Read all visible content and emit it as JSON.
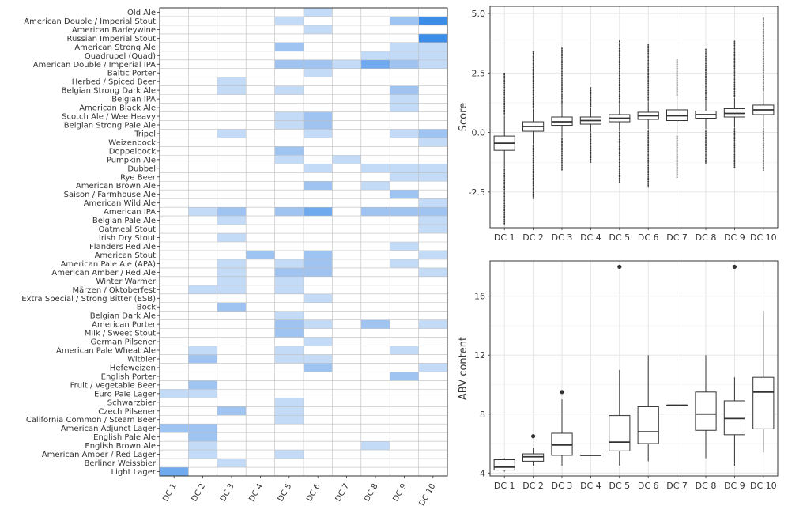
{
  "chart_data": [
    {
      "type": "heatmap",
      "title": "",
      "xlabel": "",
      "ylabel": "",
      "x_categories": [
        "DC 1",
        "DC 2",
        "DC 3",
        "DC 4",
        "DC 5",
        "DC 6",
        "DC 7",
        "DC 8",
        "DC 9",
        "DC 10"
      ],
      "y_categories": [
        "Old Ale",
        "American Double / Imperial Stout",
        "American Barleywine",
        "Russian Imperial Stout",
        "American Strong Ale",
        "Quadrupel (Quad)",
        "American Double / Imperial IPA",
        "Baltic Porter",
        "Herbed / Spiced Beer",
        "Belgian Strong Dark Ale",
        "Belgian IPA",
        "American Black Ale",
        "Scotch Ale / Wee Heavy",
        "Belgian Strong Pale Ale",
        "Tripel",
        "Weizenbock",
        "Doppelbock",
        "Pumpkin Ale",
        "Dubbel",
        "Rye Beer",
        "American Brown Ale",
        "Saison / Farmhouse Ale",
        "American Wild Ale",
        "American IPA",
        "Belgian Pale Ale",
        "Oatmeal Stout",
        "Irish Dry Stout",
        "Flanders Red Ale",
        "American Stout",
        "American Pale Ale (APA)",
        "American Amber / Red Ale",
        "Winter Warmer",
        "Märzen / Oktoberfest",
        "Extra Special / Strong Bitter (ESB)",
        "Bock",
        "Belgian Dark Ale",
        "American Porter",
        "Milk / Sweet Stout",
        "German Pilsener",
        "American Pale Wheat Ale",
        "Witbier",
        "Hefeweizen",
        "English Porter",
        "Fruit / Vegetable Beer",
        "Euro Pale Lager",
        "Schwarzbier",
        "Czech Pilsener",
        "California Common / Steam Beer",
        "American Adjunct Lager",
        "English Pale Ale",
        "English Brown Ale",
        "American Amber / Red Lager",
        "Berliner Weissbier",
        "Light Lager"
      ],
      "cells": [
        [
          0,
          5,
          1
        ],
        [
          1,
          4,
          1
        ],
        [
          1,
          8,
          2
        ],
        [
          1,
          9,
          4
        ],
        [
          2,
          5,
          1
        ],
        [
          3,
          9,
          4
        ],
        [
          4,
          4,
          2
        ],
        [
          4,
          8,
          1
        ],
        [
          4,
          9,
          1
        ],
        [
          5,
          7,
          1
        ],
        [
          5,
          8,
          1
        ],
        [
          5,
          9,
          1
        ],
        [
          6,
          4,
          2
        ],
        [
          6,
          5,
          2
        ],
        [
          6,
          6,
          1
        ],
        [
          6,
          7,
          3
        ],
        [
          6,
          8,
          2
        ],
        [
          6,
          9,
          1
        ],
        [
          7,
          5,
          1
        ],
        [
          8,
          2,
          1
        ],
        [
          9,
          2,
          1
        ],
        [
          9,
          4,
          1
        ],
        [
          9,
          8,
          2
        ],
        [
          10,
          8,
          1
        ],
        [
          11,
          8,
          1
        ],
        [
          12,
          4,
          1
        ],
        [
          12,
          5,
          2
        ],
        [
          13,
          4,
          1
        ],
        [
          13,
          5,
          2
        ],
        [
          14,
          2,
          1
        ],
        [
          14,
          5,
          1
        ],
        [
          14,
          8,
          1
        ],
        [
          14,
          9,
          2
        ],
        [
          15,
          9,
          1
        ],
        [
          16,
          4,
          2
        ],
        [
          17,
          4,
          1
        ],
        [
          17,
          6,
          1
        ],
        [
          18,
          5,
          1
        ],
        [
          18,
          7,
          1
        ],
        [
          18,
          8,
          1
        ],
        [
          18,
          9,
          1
        ],
        [
          19,
          8,
          1
        ],
        [
          19,
          9,
          1
        ],
        [
          20,
          5,
          2
        ],
        [
          20,
          7,
          1
        ],
        [
          21,
          8,
          2
        ],
        [
          22,
          9,
          1
        ],
        [
          23,
          1,
          1
        ],
        [
          23,
          2,
          2
        ],
        [
          23,
          4,
          2
        ],
        [
          23,
          5,
          3
        ],
        [
          23,
          7,
          2
        ],
        [
          23,
          8,
          2
        ],
        [
          23,
          9,
          2
        ],
        [
          24,
          2,
          1
        ],
        [
          24,
          9,
          1
        ],
        [
          25,
          9,
          1
        ],
        [
          26,
          2,
          1
        ],
        [
          27,
          8,
          1
        ],
        [
          28,
          3,
          2
        ],
        [
          28,
          5,
          2
        ],
        [
          28,
          9,
          1
        ],
        [
          29,
          2,
          1
        ],
        [
          29,
          4,
          1
        ],
        [
          29,
          5,
          2
        ],
        [
          29,
          8,
          1
        ],
        [
          30,
          2,
          1
        ],
        [
          30,
          4,
          2
        ],
        [
          30,
          5,
          2
        ],
        [
          30,
          9,
          1
        ],
        [
          31,
          2,
          1
        ],
        [
          31,
          4,
          1
        ],
        [
          32,
          1,
          1
        ],
        [
          32,
          2,
          1
        ],
        [
          32,
          4,
          1
        ],
        [
          33,
          5,
          1
        ],
        [
          34,
          2,
          2
        ],
        [
          35,
          4,
          1
        ],
        [
          36,
          4,
          2
        ],
        [
          36,
          5,
          1
        ],
        [
          36,
          7,
          2
        ],
        [
          36,
          9,
          1
        ],
        [
          37,
          4,
          2
        ],
        [
          38,
          5,
          1
        ],
        [
          39,
          1,
          1
        ],
        [
          39,
          4,
          1
        ],
        [
          39,
          8,
          1
        ],
        [
          40,
          1,
          2
        ],
        [
          40,
          4,
          1
        ],
        [
          40,
          5,
          1
        ],
        [
          41,
          5,
          2
        ],
        [
          41,
          9,
          1
        ],
        [
          42,
          8,
          2
        ],
        [
          43,
          1,
          2
        ],
        [
          44,
          0,
          1
        ],
        [
          44,
          1,
          1
        ],
        [
          45,
          4,
          1
        ],
        [
          46,
          2,
          2
        ],
        [
          46,
          4,
          1
        ],
        [
          47,
          4,
          1
        ],
        [
          48,
          0,
          2
        ],
        [
          48,
          1,
          2
        ],
        [
          49,
          1,
          2
        ],
        [
          50,
          1,
          1
        ],
        [
          50,
          7,
          1
        ],
        [
          51,
          1,
          1
        ],
        [
          51,
          4,
          1
        ],
        [
          52,
          2,
          1
        ],
        [
          53,
          0,
          3
        ]
      ]
    },
    {
      "type": "box",
      "title": "",
      "xlabel": "",
      "ylabel": "Score",
      "ylim": [
        -4.0,
        5.3
      ],
      "yticks": [
        5.0,
        2.5,
        0.0,
        -2.5
      ],
      "ytick_labels": [
        "5.0",
        "2.5",
        "0.0",
        "-2.5"
      ],
      "categories": [
        "DC 1",
        "DC 2",
        "DC 3",
        "DC 4",
        "DC 5",
        "DC 6",
        "DC 7",
        "DC 8",
        "DC 9",
        "DC 10"
      ],
      "boxes": [
        {
          "q1": -0.75,
          "median": -0.45,
          "q3": -0.15,
          "whisker_low": -1.5,
          "whisker_high": 0.7,
          "out_low": -3.9,
          "out_high": 2.5
        },
        {
          "q1": 0.05,
          "median": 0.25,
          "q3": 0.45,
          "whisker_low": -0.5,
          "whisker_high": 1.0,
          "out_low": -2.8,
          "out_high": 3.4
        },
        {
          "q1": 0.3,
          "median": 0.45,
          "q3": 0.65,
          "whisker_low": -0.2,
          "whisker_high": 1.2,
          "out_low": -1.6,
          "out_high": 3.6
        },
        {
          "q1": 0.35,
          "median": 0.5,
          "q3": 0.65,
          "whisker_low": 0.0,
          "whisker_high": 1.05,
          "out_low": -1.25,
          "out_high": 1.9
        },
        {
          "q1": 0.45,
          "median": 0.6,
          "q3": 0.75,
          "whisker_low": 0.05,
          "whisker_high": 1.2,
          "out_low": -2.1,
          "out_high": 3.9
        },
        {
          "q1": 0.55,
          "median": 0.7,
          "q3": 0.85,
          "whisker_low": 0.15,
          "whisker_high": 1.3,
          "out_low": -2.3,
          "out_high": 3.7
        },
        {
          "q1": 0.5,
          "median": 0.7,
          "q3": 0.95,
          "whisker_low": -0.1,
          "whisker_high": 1.5,
          "out_low": -1.9,
          "out_high": 3.1
        },
        {
          "q1": 0.6,
          "median": 0.75,
          "q3": 0.9,
          "whisker_low": 0.15,
          "whisker_high": 1.35,
          "out_low": -1.3,
          "out_high": 3.5
        },
        {
          "q1": 0.65,
          "median": 0.8,
          "q3": 1.0,
          "whisker_low": 0.2,
          "whisker_high": 1.45,
          "out_low": -1.5,
          "out_high": 3.85
        },
        {
          "q1": 0.75,
          "median": 0.95,
          "q3": 1.15,
          "whisker_low": 0.2,
          "whisker_high": 1.7,
          "out_low": -1.6,
          "out_high": 4.8
        }
      ]
    },
    {
      "type": "box",
      "title": "",
      "xlabel": "",
      "ylabel": "ABV content",
      "ylim": [
        3.8,
        18.4
      ],
      "yticks": [
        16,
        12,
        8,
        4
      ],
      "ytick_labels": [
        "16",
        "12",
        "8",
        "4"
      ],
      "categories": [
        "DC 1",
        "DC 2",
        "DC 3",
        "DC 4",
        "DC 5",
        "DC 6",
        "DC 7",
        "DC 8",
        "DC 9",
        "DC 10"
      ],
      "boxes": [
        {
          "q1": 4.2,
          "median": 4.4,
          "q3": 4.9,
          "whisker_low": 4.1,
          "whisker_high": 5.0,
          "outliers": []
        },
        {
          "q1": 4.8,
          "median": 5.1,
          "q3": 5.3,
          "whisker_low": 4.5,
          "whisker_high": 5.7,
          "outliers": [
            6.5
          ]
        },
        {
          "q1": 5.2,
          "median": 5.9,
          "q3": 6.7,
          "whisker_low": 4.5,
          "whisker_high": 9.0,
          "outliers": [
            9.5
          ]
        },
        {
          "q1": 5.2,
          "median": 5.2,
          "q3": 5.2,
          "whisker_low": 5.2,
          "whisker_high": 5.2,
          "outliers": []
        },
        {
          "q1": 5.5,
          "median": 6.1,
          "q3": 7.9,
          "whisker_low": 4.5,
          "whisker_high": 11.0,
          "outliers": [
            18.0
          ]
        },
        {
          "q1": 6.0,
          "median": 6.8,
          "q3": 8.5,
          "whisker_low": 4.8,
          "whisker_high": 12.0,
          "outliers": []
        },
        {
          "q1": 8.6,
          "median": 8.6,
          "q3": 8.6,
          "whisker_low": 8.6,
          "whisker_high": 8.6,
          "outliers": []
        },
        {
          "q1": 6.9,
          "median": 8.0,
          "q3": 9.5,
          "whisker_low": 5.0,
          "whisker_high": 12.0,
          "outliers": []
        },
        {
          "q1": 6.6,
          "median": 7.7,
          "q3": 8.9,
          "whisker_low": 4.5,
          "whisker_high": 10.5,
          "outliers": [
            18.0
          ]
        },
        {
          "q1": 7.0,
          "median": 9.5,
          "q3": 10.5,
          "whisker_low": 5.4,
          "whisker_high": 15.0,
          "outliers": []
        }
      ]
    }
  ]
}
